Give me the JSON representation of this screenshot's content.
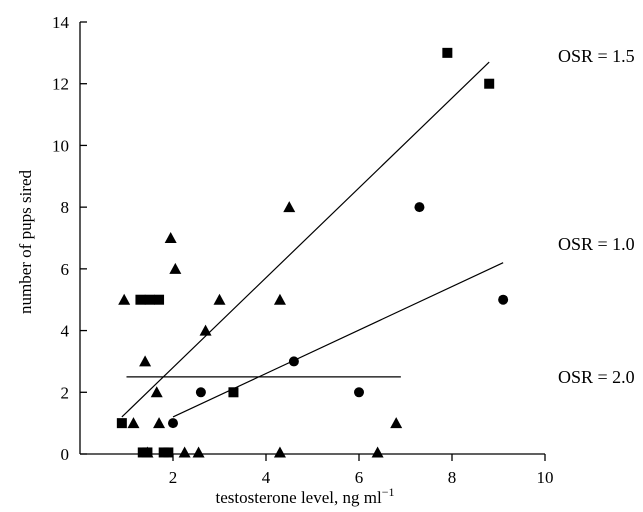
{
  "chart_data": {
    "type": "scatter",
    "title": "",
    "xlabel": "testosterone level, ng ml",
    "xlabel_superscript": "−1",
    "ylabel": "number of pups sired",
    "xlim": [
      0,
      10
    ],
    "ylim": [
      0,
      14
    ],
    "xticks": [
      2,
      4,
      6,
      8,
      10
    ],
    "yticks": [
      0,
      2,
      4,
      6,
      8,
      10,
      12,
      14
    ],
    "grid": false,
    "legend": "none",
    "series": [
      {
        "marker": "square",
        "label": "OSR = 1.5",
        "points": [
          [
            0.9,
            1
          ],
          [
            1.3,
            5
          ],
          [
            1.5,
            5
          ],
          [
            1.7,
            5
          ],
          [
            1.35,
            0.05
          ],
          [
            1.45,
            0.05
          ],
          [
            1.8,
            0.05
          ],
          [
            1.9,
            0.05
          ],
          [
            3.3,
            2
          ],
          [
            7.9,
            13
          ],
          [
            8.8,
            12
          ]
        ],
        "fit": [
          [
            0.9,
            1.2
          ],
          [
            8.8,
            12.7
          ]
        ]
      },
      {
        "marker": "circle",
        "label": "OSR = 1.0",
        "points": [
          [
            2.0,
            1
          ],
          [
            2.6,
            2
          ],
          [
            4.6,
            3
          ],
          [
            6.0,
            2
          ],
          [
            7.3,
            8
          ],
          [
            9.1,
            5
          ]
        ],
        "fit": [
          [
            2.0,
            1.2
          ],
          [
            9.1,
            6.2
          ]
        ]
      },
      {
        "marker": "triangle",
        "label": "OSR = 2.0",
        "points": [
          [
            0.95,
            5
          ],
          [
            1.15,
            1
          ],
          [
            1.4,
            3
          ],
          [
            1.45,
            0.05
          ],
          [
            1.65,
            2
          ],
          [
            1.7,
            1
          ],
          [
            1.95,
            7
          ],
          [
            2.05,
            6
          ],
          [
            2.25,
            0.05
          ],
          [
            2.55,
            0.05
          ],
          [
            2.7,
            4
          ],
          [
            3.0,
            5
          ],
          [
            4.3,
            5
          ],
          [
            4.3,
            0.05
          ],
          [
            4.5,
            8
          ],
          [
            6.4,
            0.05
          ],
          [
            6.8,
            1
          ]
        ],
        "fit": [
          [
            1.0,
            2.5
          ],
          [
            6.9,
            2.5
          ]
        ]
      }
    ]
  }
}
